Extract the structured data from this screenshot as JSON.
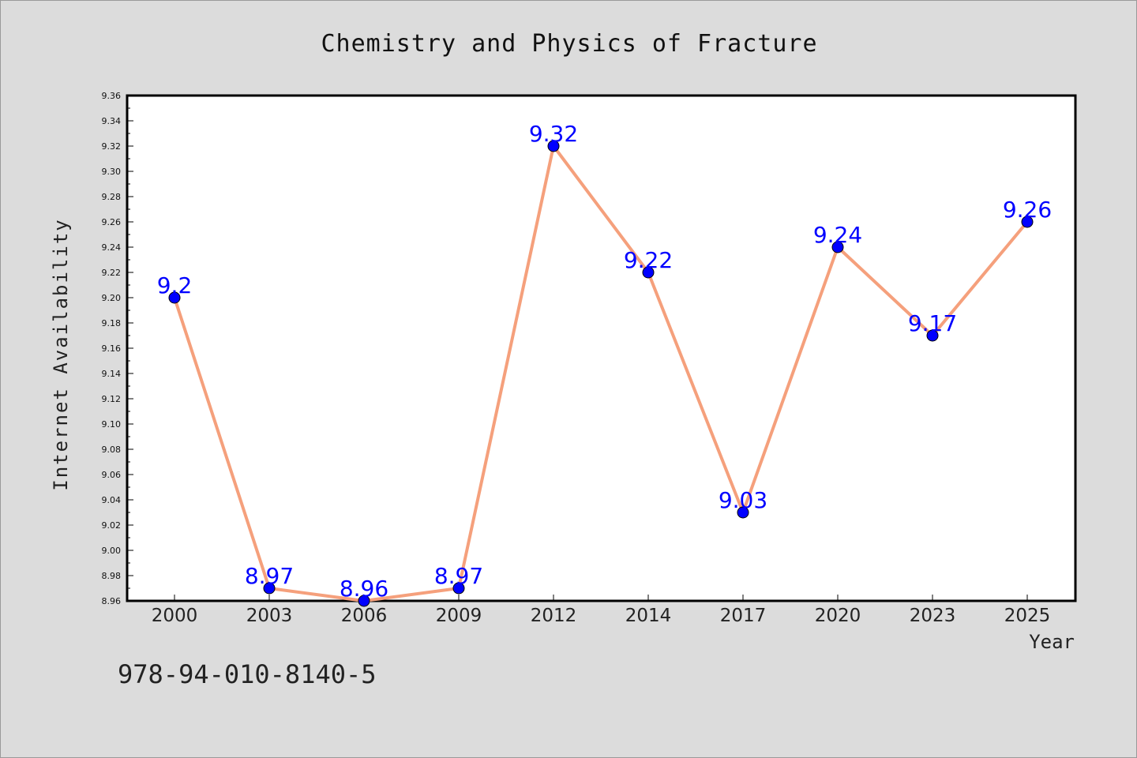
{
  "colors": {
    "background": "#dcdcdc",
    "plot_background": "#ffffff",
    "line": "#f5a07c",
    "marker": "#0000ff",
    "data_label": "#0000ff"
  },
  "footer": {
    "text": "978-94-010-8140-5"
  },
  "chart_data": {
    "type": "line",
    "title": "Chemistry and Physics of Fracture",
    "xlabel": "Year",
    "ylabel": "Internet Availability",
    "categories": [
      "2000",
      "2003",
      "2006",
      "2009",
      "2012",
      "2014",
      "2017",
      "2020",
      "2023",
      "2025"
    ],
    "series": [
      {
        "values": [
          9.2,
          8.97,
          8.96,
          8.97,
          9.32,
          9.22,
          9.03,
          9.24,
          9.17,
          9.26
        ]
      }
    ],
    "data_labels": [
      "9.2",
      "8.97",
      "8.96",
      "8.97",
      "9.32",
      "9.22",
      "9.03",
      "9.24",
      "9.17",
      "9.26"
    ],
    "yticks": [
      "8.96",
      "8.98",
      "9.00",
      "9.02",
      "9.04",
      "9.06",
      "9.08",
      "9.10",
      "9.12",
      "9.14",
      "9.16",
      "9.18",
      "9.20",
      "9.22",
      "9.24",
      "9.26",
      "9.28",
      "9.30",
      "9.32",
      "9.34",
      "9.36"
    ],
    "ylim": [
      8.96,
      9.36
    ],
    "grid": false,
    "legend": "none"
  }
}
